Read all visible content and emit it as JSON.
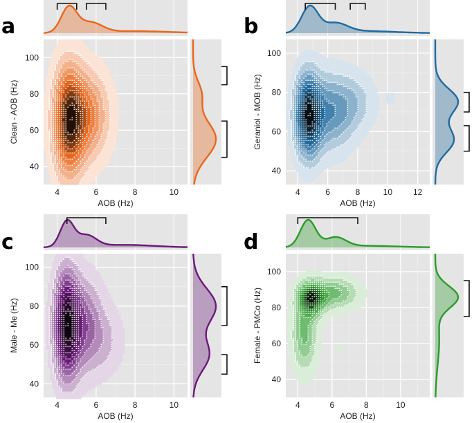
{
  "figure": {
    "panels": [
      {
        "letter": "a",
        "title": "",
        "xlabel": "AOB (Hz)",
        "ylabel": "Clean - AOB (Hz)",
        "color": "#e8671c",
        "xticks": [
          "4",
          "6",
          "8",
          "10"
        ],
        "yticks": [
          "40",
          "60",
          "80",
          "100"
        ],
        "top_brackets": [
          [
            4,
            5
          ],
          [
            5.5,
            6.5
          ]
        ],
        "right_brackets": [
          [
            45,
            65
          ],
          [
            85,
            95
          ]
        ]
      },
      {
        "letter": "b",
        "title": "",
        "xlabel": "AOB (Hz)",
        "ylabel": "Geraniol - MOB (Hz)",
        "color": "#1f6a9e",
        "xticks": [
          "4",
          "6",
          "8",
          "10",
          "12"
        ],
        "yticks": [
          "40",
          "60",
          "80",
          "100"
        ],
        "top_brackets": [
          [
            4.5,
            6.5
          ],
          [
            7.5,
            8.5
          ]
        ],
        "right_brackets": [
          [
            50,
            63
          ],
          [
            70,
            80
          ]
        ]
      },
      {
        "letter": "c",
        "title": "",
        "xlabel": "AOB (Hz)",
        "ylabel": "Male - Me (Hz)",
        "color": "#6a1a78",
        "xticks": [
          "4",
          "6",
          "8",
          "10"
        ],
        "yticks": [
          "40",
          "60",
          "80",
          "100"
        ],
        "top_brackets": [
          [
            4.5,
            6.5
          ]
        ],
        "right_brackets": [
          [
            45,
            55
          ],
          [
            70,
            90
          ]
        ]
      },
      {
        "letter": "d",
        "title": "",
        "xlabel": "AOB (Hz)",
        "ylabel": "Female - PMCo (Hz)",
        "color": "#2a9b2a",
        "xticks": [
          "4",
          "6",
          "8",
          "10"
        ],
        "yticks": [
          "40",
          "60",
          "80",
          "100"
        ],
        "top_brackets": [
          [
            4,
            7.5
          ]
        ],
        "right_brackets": [
          [
            75,
            95
          ]
        ]
      }
    ]
  },
  "chart_data": [
    {
      "type": "heatmap",
      "panel": "a",
      "title": "",
      "xlabel": "AOB (Hz)",
      "ylabel": "Clean - AOB (Hz)",
      "xlim": [
        3.3,
        10.7
      ],
      "ylim": [
        30,
        110
      ],
      "xtick_values": [
        4,
        6,
        8,
        10
      ],
      "ytick_values": [
        40,
        60,
        80,
        100
      ],
      "kde_peaks": [
        {
          "x": 4.6,
          "y": 65,
          "sx": 0.55,
          "sy": 20,
          "w": 1.0
        },
        {
          "x": 5.7,
          "y": 68,
          "sx": 0.7,
          "sy": 16,
          "w": 0.5
        }
      ],
      "marginal_x_peaks": [
        {
          "x": 4.6,
          "s": 0.4,
          "w": 1.0
        },
        {
          "x": 5.7,
          "s": 0.6,
          "w": 0.4
        },
        {
          "x": 8.0,
          "s": 1.8,
          "w": 0.08
        }
      ],
      "marginal_y_peaks": [
        {
          "y": 55,
          "s": 10,
          "w": 1.0
        },
        {
          "y": 80,
          "s": 7,
          "w": 0.35
        }
      ]
    },
    {
      "type": "heatmap",
      "panel": "b",
      "title": "",
      "xlabel": "AOB (Hz)",
      "ylabel": "Geraniol - MOB (Hz)",
      "xlim": [
        3.2,
        12.8
      ],
      "ylim": [
        33,
        107
      ],
      "xtick_values": [
        4,
        6,
        8,
        10,
        12
      ],
      "ytick_values": [
        40,
        60,
        80,
        100
      ],
      "kde_peaks": [
        {
          "x": 4.7,
          "y": 68,
          "sx": 0.6,
          "sy": 14,
          "w": 1.0
        },
        {
          "x": 6.3,
          "y": 70,
          "sx": 1.0,
          "sy": 13,
          "w": 0.45
        },
        {
          "x": 8.0,
          "y": 75,
          "sx": 0.9,
          "sy": 10,
          "w": 0.18
        },
        {
          "x": 10.2,
          "y": 77,
          "sx": 0.22,
          "sy": 2.2,
          "w": 0.12
        }
      ],
      "marginal_x_peaks": [
        {
          "x": 4.8,
          "s": 0.55,
          "w": 1.0
        },
        {
          "x": 6.5,
          "s": 0.8,
          "w": 0.35
        },
        {
          "x": 8.5,
          "s": 2.0,
          "w": 0.08
        }
      ],
      "marginal_y_peaks": [
        {
          "y": 55,
          "s": 6,
          "w": 0.8
        },
        {
          "y": 76,
          "s": 6,
          "w": 1.0
        },
        {
          "y": 66,
          "s": 10,
          "w": 0.35
        }
      ]
    },
    {
      "type": "heatmap",
      "panel": "c",
      "title": "",
      "xlabel": "AOB (Hz)",
      "ylabel": "Male - Me (Hz)",
      "xlim": [
        3.3,
        10.7
      ],
      "ylim": [
        33,
        107
      ],
      "xtick_values": [
        4,
        6,
        8,
        10
      ],
      "ytick_values": [
        40,
        60,
        80,
        100
      ],
      "kde_peaks": [
        {
          "x": 4.5,
          "y": 70,
          "sx": 0.45,
          "sy": 18,
          "w": 1.0
        },
        {
          "x": 5.5,
          "y": 70,
          "sx": 0.6,
          "sy": 16,
          "w": 0.4
        },
        {
          "x": 6.6,
          "y": 62,
          "sx": 0.6,
          "sy": 12,
          "w": 0.15
        }
      ],
      "marginal_x_peaks": [
        {
          "x": 4.5,
          "s": 0.35,
          "w": 1.0
        },
        {
          "x": 5.5,
          "s": 0.5,
          "w": 0.45
        },
        {
          "x": 7.5,
          "s": 1.5,
          "w": 0.1
        }
      ],
      "marginal_y_peaks": [
        {
          "y": 80,
          "s": 9,
          "w": 1.0
        },
        {
          "y": 55,
          "s": 8,
          "w": 0.7
        }
      ]
    },
    {
      "type": "heatmap",
      "panel": "d",
      "title": "",
      "xlabel": "AOB (Hz)",
      "ylabel": "Female - PMCo (Hz)",
      "xlim": [
        3.3,
        11.7
      ],
      "ylim": [
        30,
        110
      ],
      "xtick_values": [
        4,
        6,
        8,
        10
      ],
      "ytick_values": [
        40,
        60,
        80,
        100
      ],
      "kde_peaks": [
        {
          "x": 4.8,
          "y": 85,
          "sx": 0.5,
          "sy": 6,
          "w": 1.0
        },
        {
          "x": 6.2,
          "y": 88,
          "sx": 0.9,
          "sy": 6,
          "w": 0.45
        },
        {
          "x": 4.4,
          "y": 65,
          "sx": 0.5,
          "sy": 14,
          "w": 0.45
        },
        {
          "x": 6.4,
          "y": 57,
          "sx": 0.18,
          "sy": 2.5,
          "w": 0.1
        }
      ],
      "marginal_x_peaks": [
        {
          "x": 4.6,
          "s": 0.45,
          "w": 1.0
        },
        {
          "x": 6.2,
          "s": 0.6,
          "w": 0.35
        },
        {
          "x": 8.0,
          "s": 1.8,
          "w": 0.06
        }
      ],
      "marginal_y_peaks": [
        {
          "y": 86,
          "s": 6,
          "w": 1.0
        },
        {
          "y": 62,
          "s": 14,
          "w": 0.18
        }
      ]
    }
  ]
}
